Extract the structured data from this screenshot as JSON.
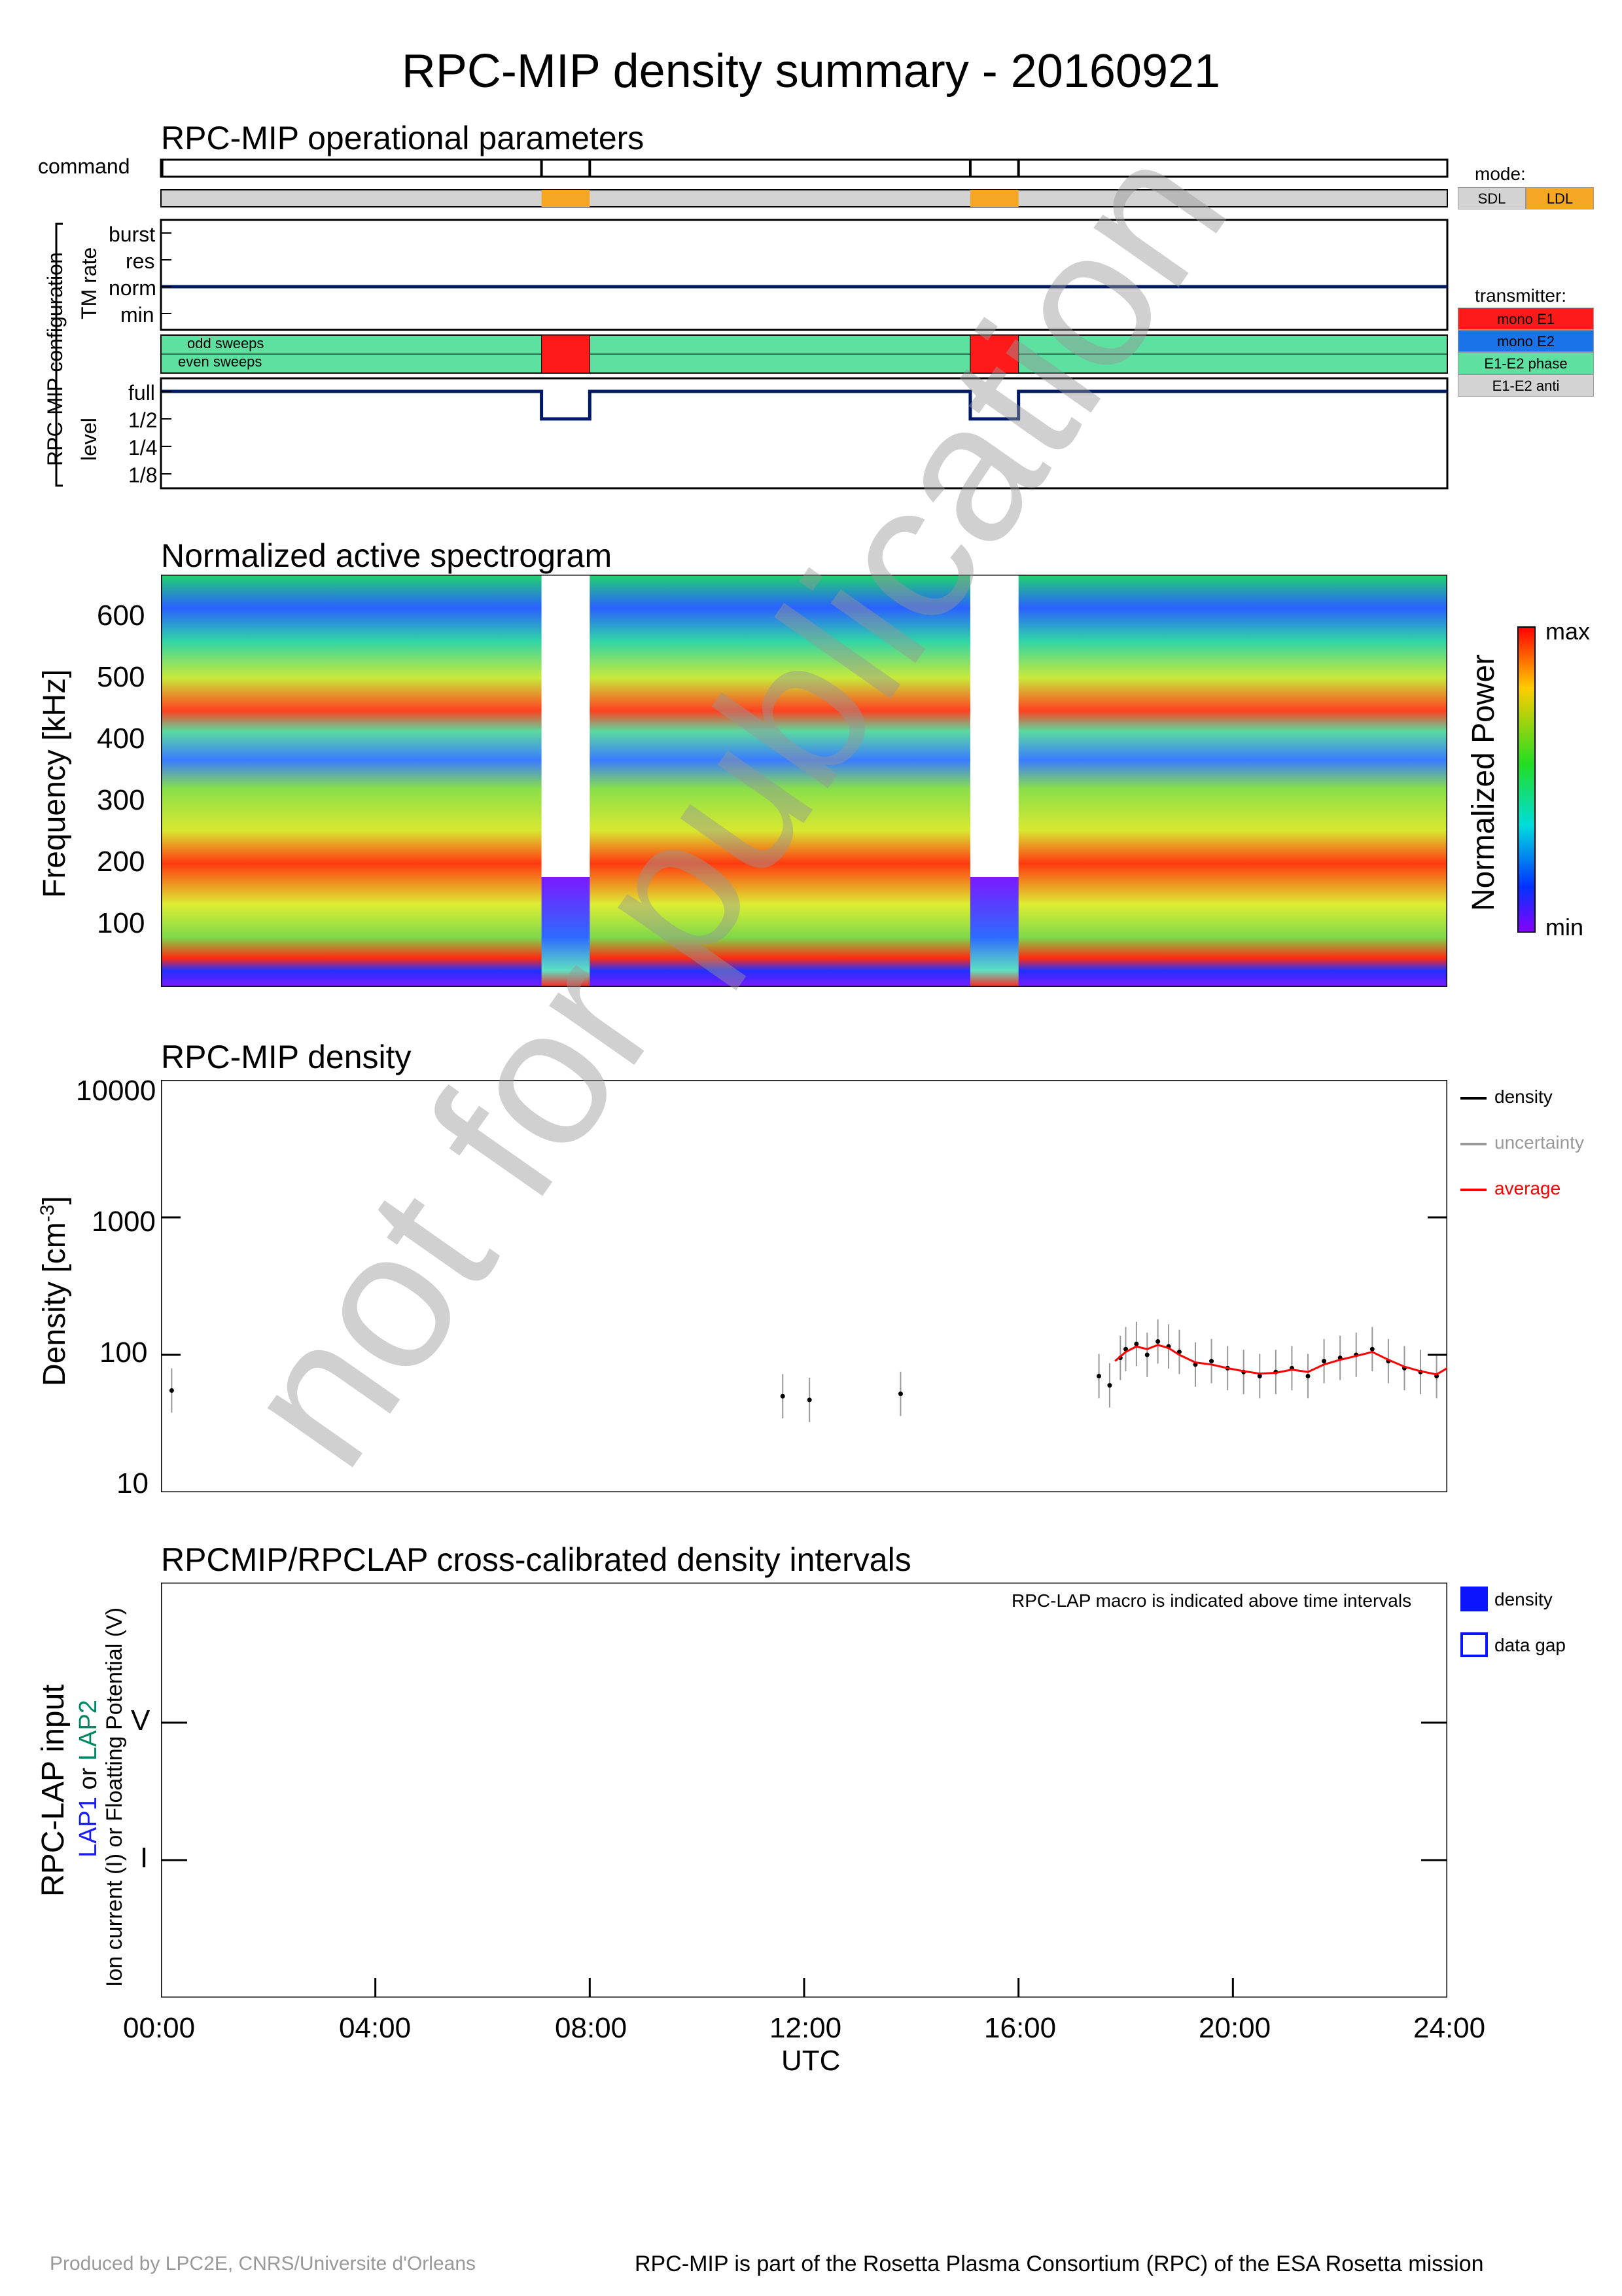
{
  "header": {
    "title": "RPC-MIP density summary - 20160921"
  },
  "ops": {
    "title": "RPC-MIP operational parameters",
    "command_label": "command",
    "config_label": "RPC-MIP configuration",
    "tm_label": "TM rate",
    "tm_levels": [
      "burst",
      "res",
      "norm",
      "min"
    ],
    "sweep_labels": [
      "odd sweeps",
      "even sweeps"
    ],
    "level_label": "level",
    "levels": [
      "full",
      "1/2",
      "1/4",
      "1/8"
    ],
    "mode_title": "mode:",
    "modes": [
      {
        "label": "SDL",
        "color": "#d3d3d3"
      },
      {
        "label": "LDL",
        "color": "#f5a623"
      }
    ],
    "transmitter_title": "transmitter:",
    "transmitters": [
      {
        "label": "mono E1",
        "color": "#ff1a1a"
      },
      {
        "label": "mono E2",
        "color": "#1a73e8"
      },
      {
        "label": "E1-E2 phase",
        "color": "#5ee0a0"
      },
      {
        "label": "E1-E2 anti",
        "color": "#d3d3d3"
      }
    ],
    "ldl_intervals_hours": [
      [
        7.1,
        8.0
      ],
      [
        15.1,
        16.0
      ]
    ]
  },
  "spectrogram": {
    "title": "Normalized active spectrogram",
    "ylabel": "Frequency [kHz]",
    "yticks": [
      "600",
      "500",
      "400",
      "300",
      "200",
      "100"
    ],
    "colorbar_label": "Normalized Power",
    "colorbar_max": "max",
    "colorbar_min": "min"
  },
  "density": {
    "title": "RPC-MIP density",
    "ylabel_main": "Density [cm",
    "ylabel_sup": "-3",
    "ylabel_end": "]",
    "yticks": [
      "10000",
      "1000",
      "100",
      "10"
    ],
    "legend": [
      {
        "label": "density",
        "color": "#000000"
      },
      {
        "label": "uncertainty",
        "color": "#999999"
      },
      {
        "label": "average",
        "color": "#ff0000"
      }
    ]
  },
  "lap": {
    "title": "RPCMIP/RPCLAP cross-calibrated density intervals",
    "note": "RPC-LAP macro is indicated above time intervals",
    "ylabel_main": "RPC-LAP input",
    "ylabel_lap1": "LAP1",
    "ylabel_or": " or ",
    "ylabel_lap2": "LAP2",
    "ylabel_sub": "Ion current (I) or Floatting Potential (V)",
    "yticks": [
      "V",
      "I"
    ],
    "legend": [
      {
        "label": "density"
      },
      {
        "label": "data gap"
      }
    ]
  },
  "xaxis": {
    "ticks": [
      "00:00",
      "04:00",
      "08:00",
      "12:00",
      "16:00",
      "20:00",
      "24:00"
    ],
    "label": "UTC"
  },
  "watermark": "not for publication",
  "footer": {
    "left": "Produced by LPC2E, CNRS/Universite d'Orleans",
    "right": "RPC-MIP is part of the Rosetta Plasma Consortium (RPC) of the ESA Rosetta mission"
  },
  "chart_data": {
    "type": "scatter",
    "title": "RPC-MIP density",
    "xlabel": "UTC",
    "ylabel": "Density [cm-3]",
    "yscale": "log",
    "xlim": [
      0,
      24
    ],
    "ylim": [
      10,
      10000
    ],
    "series": [
      {
        "name": "density",
        "x": [
          0.2,
          11.6,
          12.1,
          13.8,
          17.5,
          17.7,
          17.9,
          18.0,
          18.2,
          18.4,
          18.6,
          18.8,
          19.0,
          19.3,
          19.6,
          19.9,
          20.2,
          20.5,
          20.8,
          21.1,
          21.4,
          21.7,
          22.0,
          22.3,
          22.6,
          22.9,
          23.2,
          23.5,
          23.8
        ],
        "values": [
          55,
          50,
          47,
          52,
          70,
          60,
          95,
          110,
          120,
          100,
          125,
          115,
          105,
          85,
          90,
          80,
          75,
          70,
          75,
          80,
          70,
          90,
          95,
          100,
          110,
          90,
          80,
          75,
          70
        ]
      },
      {
        "name": "average",
        "x": [
          17.8,
          18.0,
          18.2,
          18.4,
          18.6,
          18.8,
          19.0,
          19.3,
          19.6,
          19.9,
          20.2,
          20.5,
          20.8,
          21.1,
          21.4,
          21.7,
          22.0,
          22.3,
          22.6,
          22.9,
          23.2,
          23.5,
          23.8,
          24.0
        ],
        "values": [
          90,
          105,
          115,
          110,
          118,
          112,
          100,
          88,
          85,
          80,
          76,
          73,
          74,
          78,
          75,
          85,
          92,
          98,
          105,
          92,
          82,
          76,
          72,
          80
        ]
      }
    ]
  }
}
